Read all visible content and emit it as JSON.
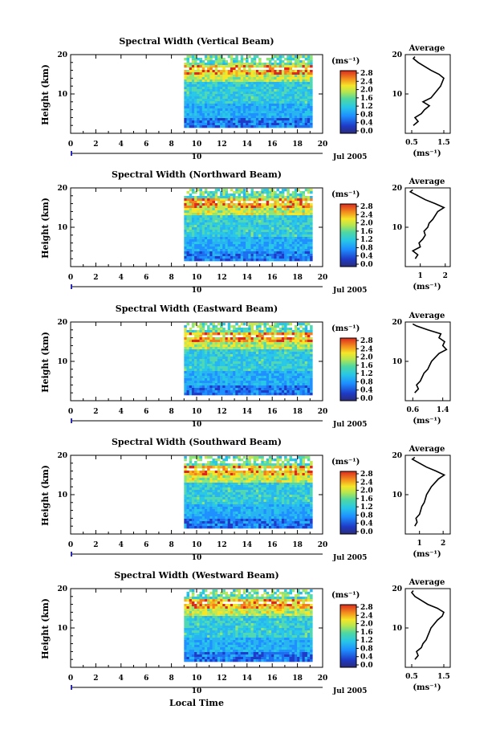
{
  "chart_data": [
    {
      "type": "heatmap",
      "title": "Spectral Width (Vertical Beam)",
      "ylabel": "Height (km)",
      "xlim": [
        0,
        20
      ],
      "ylim": [
        0,
        20
      ],
      "x_ticks": [
        "0",
        "2",
        "4",
        "6",
        "8",
        "10",
        "12",
        "14",
        "16",
        "18",
        "20"
      ],
      "y_ticks": [
        "20",
        "10"
      ],
      "date_day": "10",
      "date_label": "Jul 2005",
      "data_start_hour": 9,
      "data_end_hour": 19,
      "colorbar": {
        "unit": "(ms⁻¹)",
        "ticks": [
          "2.8",
          "2.4",
          "2.0",
          "1.6",
          "1.2",
          "0.8",
          "0.4",
          "0.0"
        ]
      },
      "profile": {
        "title": "Average",
        "xlabel": "(ms⁻¹)",
        "x_ticks": [
          "0.5",
          "1.5"
        ],
        "xlim": [
          0.3,
          1.7
        ],
        "h": [
          2,
          3,
          4,
          5,
          6,
          7,
          8,
          9,
          10,
          11,
          12,
          13,
          14,
          15,
          16,
          17,
          18,
          19,
          19.5
        ],
        "v": [
          0.55,
          0.7,
          0.6,
          0.8,
          0.9,
          1.05,
          0.85,
          1.1,
          1.2,
          1.3,
          1.4,
          1.45,
          1.5,
          1.35,
          1.1,
          0.9,
          0.7,
          0.55,
          0.6
        ]
      }
    },
    {
      "type": "heatmap",
      "title": "Spectral Width (Northward Beam)",
      "ylabel": "Height (km)",
      "xlim": [
        0,
        20
      ],
      "ylim": [
        0,
        20
      ],
      "x_ticks": [
        "0",
        "2",
        "4",
        "6",
        "8",
        "10",
        "12",
        "14",
        "16",
        "18",
        "20"
      ],
      "y_ticks": [
        "20",
        "10"
      ],
      "date_day": "10",
      "date_label": "Jul 2005",
      "data_start_hour": 9,
      "data_end_hour": 19,
      "colorbar": {
        "unit": "(ms⁻¹)",
        "ticks": [
          "2.8",
          "2.4",
          "2.0",
          "1.6",
          "1.2",
          "0.8",
          "0.4",
          "0.0"
        ]
      },
      "profile": {
        "title": "Average",
        "xlabel": "(ms⁻¹)",
        "x_ticks": [
          "1",
          "2"
        ],
        "xlim": [
          0.4,
          2.2
        ],
        "h": [
          2,
          3,
          4,
          5,
          6,
          7,
          8,
          9,
          10,
          11,
          12,
          13,
          14,
          15,
          16,
          17,
          18,
          19,
          19.5
        ],
        "v": [
          0.8,
          0.9,
          0.7,
          1.0,
          0.95,
          1.1,
          1.2,
          1.15,
          1.3,
          1.35,
          1.5,
          1.6,
          1.7,
          1.95,
          1.6,
          1.2,
          0.9,
          0.6,
          0.7
        ]
      }
    },
    {
      "type": "heatmap",
      "title": "Spectral Width (Eastward Beam)",
      "ylabel": "Height (km)",
      "xlim": [
        0,
        20
      ],
      "ylim": [
        0,
        20
      ],
      "x_ticks": [
        "0",
        "2",
        "4",
        "6",
        "8",
        "10",
        "12",
        "14",
        "16",
        "18",
        "20"
      ],
      "y_ticks": [
        "20",
        "10"
      ],
      "date_day": "10",
      "date_label": "Jul 2005",
      "data_start_hour": 9,
      "data_end_hour": 19,
      "colorbar": {
        "unit": "(ms⁻¹)",
        "ticks": [
          "2.8",
          "2.4",
          "2.0",
          "1.6",
          "1.2",
          "0.8",
          "0.4",
          "0.0"
        ]
      },
      "profile": {
        "title": "Average",
        "xlabel": "(ms⁻¹)",
        "x_ticks": [
          "0.6",
          "1.4"
        ],
        "xlim": [
          0.4,
          1.6
        ],
        "h": [
          2,
          3,
          4,
          5,
          6,
          7,
          8,
          9,
          10,
          11,
          12,
          13,
          14,
          15,
          16,
          17,
          18,
          19,
          19.5
        ],
        "v": [
          0.65,
          0.75,
          0.7,
          0.8,
          0.85,
          0.9,
          1.0,
          1.05,
          1.1,
          1.2,
          1.3,
          1.5,
          1.4,
          1.45,
          1.3,
          1.35,
          1.0,
          0.7,
          0.6
        ]
      }
    },
    {
      "type": "heatmap",
      "title": "Spectral Width (Southward Beam)",
      "ylabel": "Height (km)",
      "xlim": [
        0,
        20
      ],
      "ylim": [
        0,
        20
      ],
      "x_ticks": [
        "0",
        "2",
        "4",
        "6",
        "8",
        "10",
        "12",
        "14",
        "16",
        "18",
        "20"
      ],
      "y_ticks": [
        "20",
        "10"
      ],
      "date_day": "10",
      "date_label": "Jul 2005",
      "data_start_hour": 9,
      "data_end_hour": 19,
      "colorbar": {
        "unit": "(ms⁻¹)",
        "ticks": [
          "2.8",
          "2.4",
          "2.0",
          "1.6",
          "1.2",
          "0.8",
          "0.4",
          "0.0"
        ]
      },
      "profile": {
        "title": "Average",
        "xlabel": "(ms⁻¹)",
        "x_ticks": [
          "1",
          "2"
        ],
        "xlim": [
          0.4,
          2.3
        ],
        "h": [
          2,
          3,
          4,
          5,
          6,
          7,
          8,
          9,
          10,
          11,
          12,
          13,
          14,
          15,
          16,
          17,
          18,
          19,
          19.5
        ],
        "v": [
          0.8,
          0.9,
          0.85,
          1.0,
          1.05,
          1.1,
          1.2,
          1.25,
          1.3,
          1.4,
          1.5,
          1.65,
          1.8,
          2.05,
          1.7,
          1.3,
          1.0,
          0.7,
          0.8
        ]
      }
    },
    {
      "type": "heatmap",
      "title": "Spectral Width (Westward Beam)",
      "ylabel": "Height (km)",
      "xlabel": "Local Time",
      "xlim": [
        0,
        20
      ],
      "ylim": [
        0,
        20
      ],
      "x_ticks": [
        "0",
        "2",
        "4",
        "6",
        "8",
        "10",
        "12",
        "14",
        "16",
        "18",
        "20"
      ],
      "y_ticks": [
        "20",
        "10"
      ],
      "date_day": "10",
      "date_label": "Jul 2005",
      "data_start_hour": 9,
      "data_end_hour": 19,
      "colorbar": {
        "unit": "(ms⁻¹)",
        "ticks": [
          "2.8",
          "2.4",
          "2.0",
          "1.6",
          "1.2",
          "0.8",
          "0.4",
          "0.0"
        ]
      },
      "profile": {
        "title": "Average",
        "xlabel": "(ms⁻¹)",
        "x_ticks": [
          "0.5",
          "1.5"
        ],
        "xlim": [
          0.3,
          1.7
        ],
        "h": [
          2,
          3,
          4,
          5,
          6,
          7,
          8,
          9,
          10,
          11,
          12,
          13,
          14,
          15,
          16,
          17,
          18,
          19,
          19.5
        ],
        "v": [
          0.6,
          0.7,
          0.65,
          0.8,
          0.85,
          0.95,
          1.0,
          1.05,
          1.1,
          1.2,
          1.3,
          1.45,
          1.5,
          1.3,
          1.0,
          0.8,
          0.6,
          0.5,
          0.55
        ]
      }
    }
  ]
}
